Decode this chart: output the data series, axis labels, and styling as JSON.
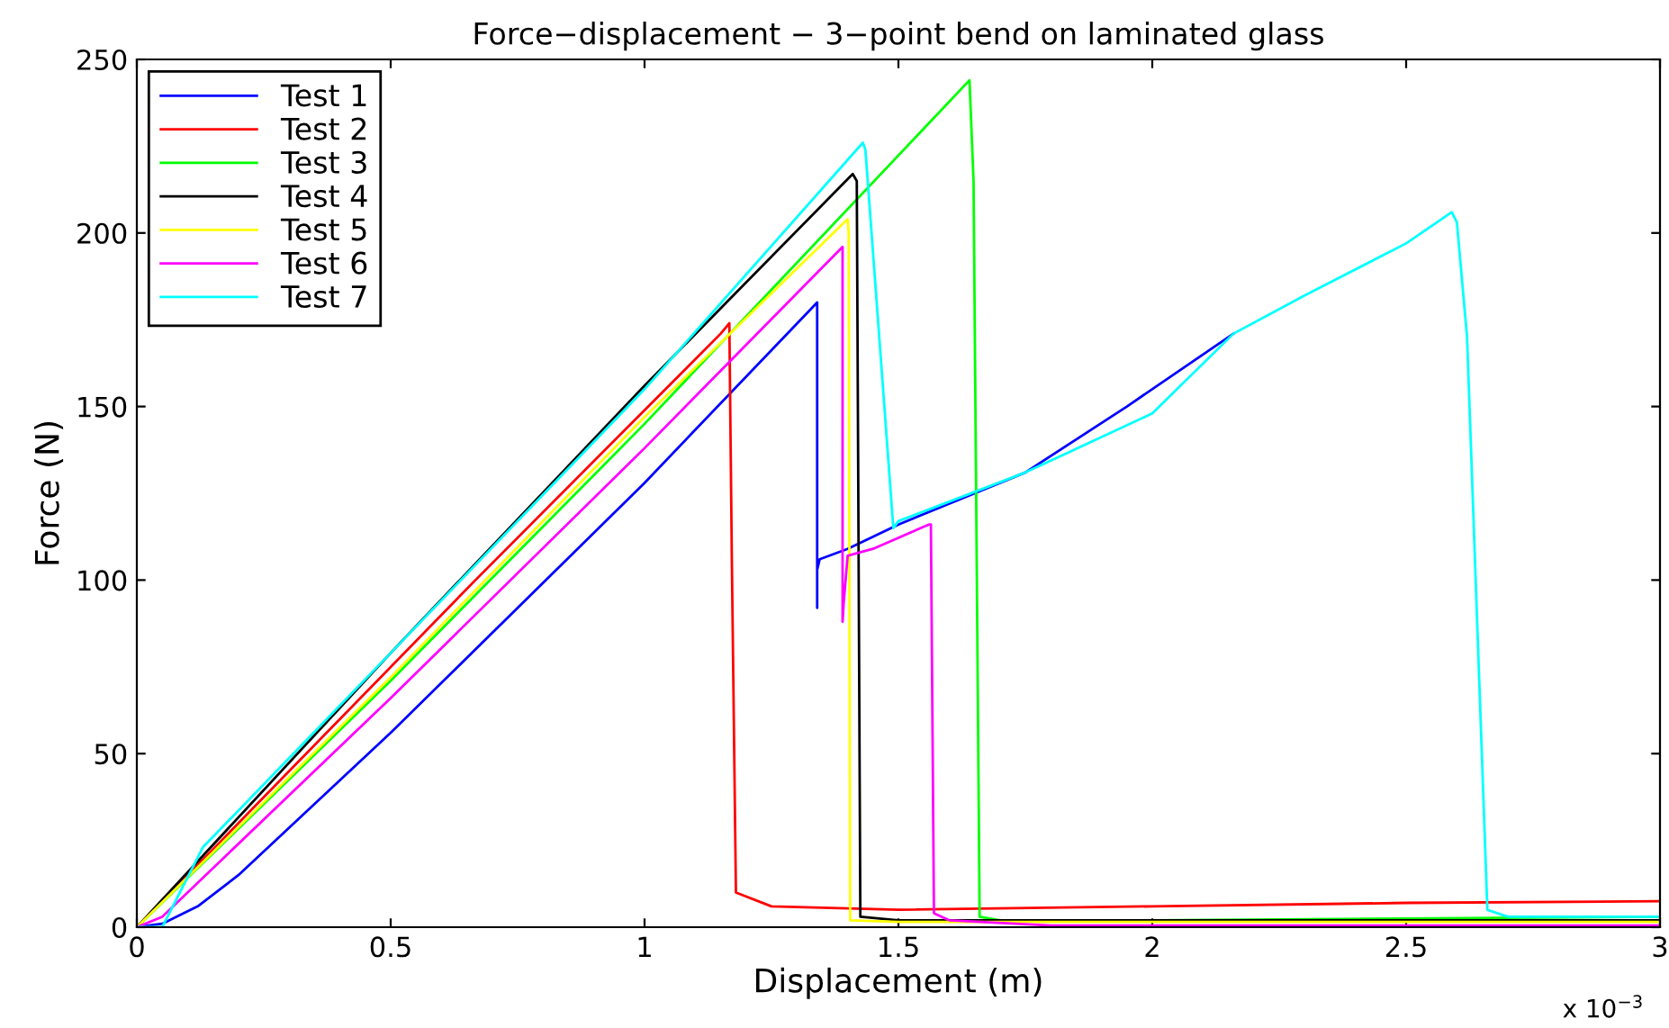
{
  "chart_data": {
    "type": "line",
    "title": "Force−displacement − 3−point bend on laminated glass",
    "xlabel": "Displacement (m)",
    "ylabel": "Force (N)",
    "annotations": [
      "x 10$^{−3}$"
    ],
    "xlim": [
      0,
      3
    ],
    "xticks": [
      0,
      0.5,
      1,
      1.5,
      2,
      2.5,
      3
    ],
    "ylim": [
      0,
      250
    ],
    "yticks": [
      0,
      50,
      100,
      150,
      200,
      250
    ],
    "grid": false,
    "legend": "top left",
    "line_style": "solid",
    "marker": "none",
    "series": [
      {
        "name": "Test 1",
        "color": "#0000ff",
        "x": [
          0,
          0.05,
          0.12,
          0.2,
          0.5,
          1,
          1.34,
          1.34,
          1.34,
          1.345,
          1.4,
          1.5,
          1.75,
          1.95,
          2.16
        ],
        "values": [
          0,
          1,
          6,
          15,
          56,
          128,
          180,
          92,
          103,
          106,
          109,
          116,
          131,
          150,
          171
        ]
      },
      {
        "name": "Test 2",
        "color": "#ff0000",
        "x": [
          0,
          0.167,
          0.667,
          1.15,
          1.167,
          1.172,
          1.18,
          1.25,
          1.5,
          2,
          2.5,
          3
        ],
        "values": [
          0,
          25,
          100,
          171,
          174,
          105,
          10,
          6,
          5,
          6,
          7,
          7.5
        ]
      },
      {
        "name": "Test 3",
        "color": "#00ff00",
        "x": [
          0,
          0.5,
          1,
          1.64,
          1.648,
          1.66,
          1.7,
          2,
          3
        ],
        "values": [
          0,
          71,
          145,
          244,
          215,
          3,
          2,
          2,
          3
        ]
      },
      {
        "name": "Test 4",
        "color": "#000000",
        "x": [
          0,
          0.5,
          1,
          1.41,
          1.418,
          1.425,
          1.5,
          2,
          3
        ],
        "values": [
          0,
          79,
          156,
          217,
          215,
          3,
          2,
          2,
          2
        ]
      },
      {
        "name": "Test 5",
        "color": "#ffff00",
        "x": [
          0,
          0.5,
          1,
          1.4,
          1.402,
          1.405,
          1.5,
          2,
          3
        ],
        "values": [
          0,
          72,
          147,
          204,
          200,
          2,
          1.5,
          1.5,
          1.5
        ]
      },
      {
        "name": "Test 6",
        "color": "#ff00ff",
        "x": [
          0,
          0.05,
          0.5,
          1,
          1.39,
          1.39,
          1.392,
          1.4,
          1.45,
          1.56,
          1.564,
          1.57,
          1.6,
          1.8,
          3
        ],
        "values": [
          0,
          3,
          66,
          138,
          196,
          88,
          93,
          107,
          109,
          116,
          116,
          4,
          2,
          0.5,
          0.5
        ]
      },
      {
        "name": "Test 7",
        "color": "#00ffff",
        "x": [
          0,
          0.05,
          0.13,
          0.5,
          1,
          1.43,
          1.435,
          1.49,
          1.5,
          1.75,
          2,
          2.16,
          2.3,
          2.5,
          2.59,
          2.6,
          2.62,
          2.66,
          2.7,
          3
        ],
        "values": [
          0,
          0,
          23,
          79,
          155,
          226,
          224,
          115,
          117,
          131,
          148,
          171,
          182,
          197,
          206,
          203,
          170,
          5,
          3,
          3
        ]
      }
    ]
  }
}
